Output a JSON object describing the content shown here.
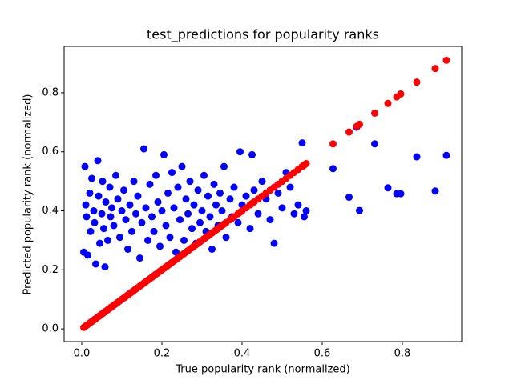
{
  "chart_data": {
    "type": "scatter",
    "title": "test_predictions for popularity ranks",
    "x_label": "True popularity rank (normalized)",
    "y_label": "Predicted popularity rank (normalized)",
    "x": [
      0.005,
      0.008,
      0.01,
      0.012,
      0.015,
      0.02,
      0.022,
      0.025,
      0.03,
      0.032,
      0.035,
      0.04,
      0.042,
      0.045,
      0.05,
      0.052,
      0.055,
      0.058,
      0.06,
      0.065,
      0.07,
      0.072,
      0.075,
      0.08,
      0.085,
      0.09,
      0.095,
      0.1,
      0.105,
      0.11,
      0.115,
      0.12,
      0.125,
      0.13,
      0.135,
      0.14,
      0.145,
      0.15,
      0.155,
      0.16,
      0.165,
      0.17,
      0.175,
      0.18,
      0.185,
      0.19,
      0.195,
      0.2,
      0.205,
      0.21,
      0.215,
      0.22,
      0.225,
      0.23,
      0.235,
      0.24,
      0.245,
      0.25,
      0.255,
      0.26,
      0.265,
      0.27,
      0.275,
      0.28,
      0.285,
      0.29,
      0.295,
      0.3,
      0.305,
      0.31,
      0.315,
      0.32,
      0.325,
      0.33,
      0.335,
      0.34,
      0.345,
      0.35,
      0.355,
      0.36,
      0.37,
      0.375,
      0.38,
      0.39,
      0.395,
      0.4,
      0.41,
      0.42,
      0.425,
      0.43,
      0.44,
      0.45,
      0.46,
      0.47,
      0.48,
      0.49,
      0.5,
      0.51,
      0.52,
      0.53,
      0.54,
      0.55,
      0.555,
      0.56,
      0.627,
      0.667,
      0.686,
      0.693,
      0.731,
      0.764,
      0.786,
      0.796,
      0.836,
      0.882,
      0.91
    ],
    "series": [
      {
        "color": "blue",
        "values": [
          0.26,
          0.55,
          0.42,
          0.38,
          0.25,
          0.46,
          0.33,
          0.51,
          0.4,
          0.36,
          0.22,
          0.57,
          0.45,
          0.29,
          0.39,
          0.5,
          0.34,
          0.21,
          0.43,
          0.3,
          0.48,
          0.38,
          0.41,
          0.35,
          0.52,
          0.44,
          0.31,
          0.4,
          0.47,
          0.37,
          0.27,
          0.42,
          0.33,
          0.5,
          0.39,
          0.45,
          0.24,
          0.36,
          0.61,
          0.41,
          0.3,
          0.49,
          0.38,
          0.33,
          0.52,
          0.43,
          0.28,
          0.4,
          0.59,
          0.35,
          0.46,
          0.31,
          0.53,
          0.41,
          0.26,
          0.48,
          0.37,
          0.55,
          0.3,
          0.44,
          0.39,
          0.5,
          0.34,
          0.42,
          0.29,
          0.47,
          0.36,
          0.4,
          0.52,
          0.33,
          0.45,
          0.38,
          0.27,
          0.49,
          0.42,
          0.35,
          0.46,
          0.4,
          0.55,
          0.31,
          0.44,
          0.38,
          0.48,
          0.36,
          0.6,
          0.42,
          0.45,
          0.34,
          0.59,
          0.47,
          0.39,
          0.5,
          0.44,
          0.37,
          0.29,
          0.46,
          0.41,
          0.53,
          0.48,
          0.39,
          0.42,
          0.63,
          0.38,
          0.4,
          0.543,
          0.446,
          0.683,
          0.401,
          0.627,
          0.478,
          0.458,
          0.458,
          0.583,
          0.467,
          0.588
        ]
      },
      {
        "color": "red",
        "values": [
          0.005,
          0.008,
          0.01,
          0.012,
          0.015,
          0.02,
          0.022,
          0.025,
          0.03,
          0.032,
          0.035,
          0.04,
          0.042,
          0.045,
          0.05,
          0.052,
          0.055,
          0.058,
          0.06,
          0.065,
          0.07,
          0.072,
          0.075,
          0.08,
          0.085,
          0.09,
          0.095,
          0.1,
          0.105,
          0.11,
          0.115,
          0.12,
          0.125,
          0.13,
          0.135,
          0.14,
          0.145,
          0.15,
          0.155,
          0.16,
          0.165,
          0.17,
          0.175,
          0.18,
          0.185,
          0.19,
          0.195,
          0.2,
          0.205,
          0.21,
          0.215,
          0.22,
          0.225,
          0.23,
          0.235,
          0.24,
          0.245,
          0.25,
          0.255,
          0.26,
          0.265,
          0.27,
          0.275,
          0.28,
          0.285,
          0.29,
          0.295,
          0.3,
          0.305,
          0.31,
          0.315,
          0.32,
          0.325,
          0.33,
          0.335,
          0.34,
          0.345,
          0.35,
          0.355,
          0.36,
          0.37,
          0.375,
          0.38,
          0.39,
          0.395,
          0.4,
          0.41,
          0.42,
          0.425,
          0.43,
          0.44,
          0.45,
          0.46,
          0.47,
          0.48,
          0.49,
          0.5,
          0.51,
          0.52,
          0.53,
          0.54,
          0.55,
          0.555,
          0.56,
          0.627,
          0.667,
          0.686,
          0.693,
          0.731,
          0.764,
          0.786,
          0.796,
          0.836,
          0.882,
          0.91
        ]
      }
    ],
    "xlim": [
      -0.044,
      0.948
    ],
    "ylim": [
      -0.043,
      0.957
    ],
    "xticks": [
      {
        "value": 0,
        "label": "0.0"
      },
      0.2,
      0.4,
      0.6,
      0.8
    ],
    "yticks": [
      {
        "value": 0,
        "label": "0.0"
      },
      0.2,
      0.4,
      0.6,
      0.8
    ]
  }
}
